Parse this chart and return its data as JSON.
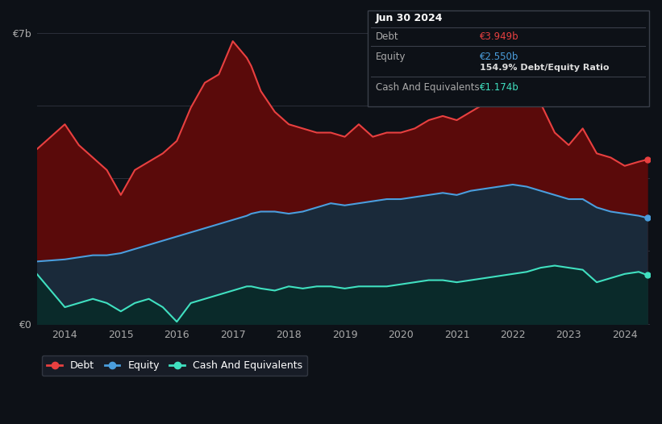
{
  "bg_color": "#0d1117",
  "plot_bg_color": "#0d1117",
  "grid_color": "#2a2f3a",
  "title_box": {
    "date": "Jun 30 2024",
    "debt_label": "Debt",
    "debt_value": "€3.949b",
    "equity_label": "Equity",
    "equity_value": "€2.550b",
    "ratio_text": "154.9% Debt/Equity Ratio",
    "cash_label": "Cash And Equivalents",
    "cash_value": "€1.174b"
  },
  "debt_color": "#e84040",
  "debt_fill": "#5a0a0a",
  "equity_color": "#4a9edd",
  "equity_fill": "#1a2a3a",
  "cash_color": "#40e0c0",
  "cash_fill": "#0a2a2a",
  "ylabel_7b": "€7b",
  "ylabel_0": "€0",
  "legend": [
    "Debt",
    "Equity",
    "Cash And Equivalents"
  ],
  "years": [
    2013.5,
    2014.0,
    2014.25,
    2014.5,
    2014.75,
    2015.0,
    2015.25,
    2015.5,
    2015.75,
    2016.0,
    2016.25,
    2016.5,
    2016.75,
    2017.0,
    2017.25,
    2017.33,
    2017.5,
    2017.75,
    2018.0,
    2018.25,
    2018.5,
    2018.75,
    2019.0,
    2019.25,
    2019.5,
    2019.75,
    2020.0,
    2020.25,
    2020.5,
    2020.75,
    2021.0,
    2021.25,
    2021.5,
    2021.75,
    2022.0,
    2022.25,
    2022.5,
    2022.75,
    2023.0,
    2023.25,
    2023.5,
    2023.75,
    2024.0,
    2024.25,
    2024.4
  ],
  "debt": [
    4.2,
    4.8,
    4.3,
    4.0,
    3.7,
    3.1,
    3.7,
    3.9,
    4.1,
    4.4,
    5.2,
    5.8,
    6.0,
    6.8,
    6.4,
    6.2,
    5.6,
    5.1,
    4.8,
    4.7,
    4.6,
    4.6,
    4.5,
    4.8,
    4.5,
    4.6,
    4.6,
    4.7,
    4.9,
    5.0,
    4.9,
    5.1,
    5.3,
    5.6,
    5.5,
    5.7,
    5.3,
    4.6,
    4.3,
    4.7,
    4.1,
    4.0,
    3.8,
    3.9,
    3.95
  ],
  "equity": [
    1.5,
    1.55,
    1.6,
    1.65,
    1.65,
    1.7,
    1.8,
    1.9,
    2.0,
    2.1,
    2.2,
    2.3,
    2.4,
    2.5,
    2.6,
    2.65,
    2.7,
    2.7,
    2.65,
    2.7,
    2.8,
    2.9,
    2.85,
    2.9,
    2.95,
    3.0,
    3.0,
    3.05,
    3.1,
    3.15,
    3.1,
    3.2,
    3.25,
    3.3,
    3.35,
    3.3,
    3.2,
    3.1,
    3.0,
    3.0,
    2.8,
    2.7,
    2.65,
    2.6,
    2.55
  ],
  "cash": [
    1.2,
    0.4,
    0.5,
    0.6,
    0.5,
    0.3,
    0.5,
    0.6,
    0.4,
    0.05,
    0.5,
    0.6,
    0.7,
    0.8,
    0.9,
    0.9,
    0.85,
    0.8,
    0.9,
    0.85,
    0.9,
    0.9,
    0.85,
    0.9,
    0.9,
    0.9,
    0.95,
    1.0,
    1.05,
    1.05,
    1.0,
    1.05,
    1.1,
    1.15,
    1.2,
    1.25,
    1.35,
    1.4,
    1.35,
    1.3,
    1.0,
    1.1,
    1.2,
    1.25,
    1.174
  ]
}
